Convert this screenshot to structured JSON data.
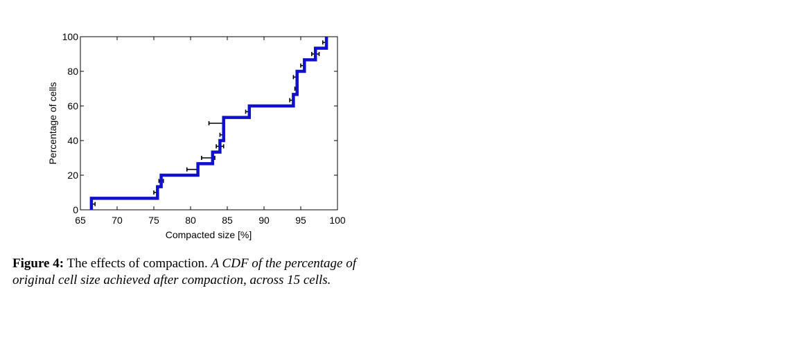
{
  "chart_data": {
    "type": "line",
    "title": "",
    "xlabel": "Compacted size [%]",
    "ylabel": "Percentage of cells",
    "xlim": [
      65,
      100
    ],
    "ylim": [
      0,
      100
    ],
    "xticks": [
      65,
      70,
      75,
      80,
      85,
      90,
      95,
      100
    ],
    "yticks": [
      0,
      20,
      40,
      60,
      80,
      100
    ],
    "grid": false,
    "legend": "none",
    "line_color": "#1010cc",
    "errorbar_color": "#000000",
    "series": [
      {
        "step_points": [
          {
            "x": 66.5,
            "y": 0
          },
          {
            "x": 66.5,
            "y": 6.67
          },
          {
            "x": 75.5,
            "y": 6.67
          },
          {
            "x": 75.5,
            "y": 13.33
          },
          {
            "x": 76.0,
            "y": 13.33
          },
          {
            "x": 76.0,
            "y": 20.0
          },
          {
            "x": 81.0,
            "y": 20.0
          },
          {
            "x": 81.0,
            "y": 26.67
          },
          {
            "x": 83.0,
            "y": 26.67
          },
          {
            "x": 83.0,
            "y": 33.33
          },
          {
            "x": 84.0,
            "y": 33.33
          },
          {
            "x": 84.0,
            "y": 40.0
          },
          {
            "x": 84.5,
            "y": 40.0
          },
          {
            "x": 84.5,
            "y": 53.33
          },
          {
            "x": 88.0,
            "y": 53.33
          },
          {
            "x": 88.0,
            "y": 60.0
          },
          {
            "x": 94.0,
            "y": 60.0
          },
          {
            "x": 94.0,
            "y": 66.67
          },
          {
            "x": 94.5,
            "y": 66.67
          },
          {
            "x": 94.5,
            "y": 80.0
          },
          {
            "x": 95.5,
            "y": 80.0
          },
          {
            "x": 95.5,
            "y": 86.67
          },
          {
            "x": 97.0,
            "y": 86.67
          },
          {
            "x": 97.0,
            "y": 93.33
          },
          {
            "x": 98.5,
            "y": 93.33
          },
          {
            "x": 98.5,
            "y": 100.0
          }
        ]
      }
    ],
    "error_bars": [
      {
        "y": 3.33,
        "x_low": 66.5,
        "x_high": 67.0
      },
      {
        "y": 10.0,
        "x_low": 75.0,
        "x_high": 75.5
      },
      {
        "y": 16.67,
        "x_low": 75.7,
        "x_high": 76.3
      },
      {
        "y": 23.33,
        "x_low": 79.5,
        "x_high": 81.0
      },
      {
        "y": 30.0,
        "x_low": 81.5,
        "x_high": 83.3
      },
      {
        "y": 36.67,
        "x_low": 83.5,
        "x_high": 84.5
      },
      {
        "y": 43.33,
        "x_low": 84.0,
        "x_high": 84.5
      },
      {
        "y": 50.0,
        "x_low": 82.5,
        "x_high": 84.5
      },
      {
        "y": 56.67,
        "x_low": 87.5,
        "x_high": 88.0
      },
      {
        "y": 63.33,
        "x_low": 93.5,
        "x_high": 94.0
      },
      {
        "y": 70.0,
        "x_low": 94.2,
        "x_high": 94.5
      },
      {
        "y": 76.67,
        "x_low": 94.0,
        "x_high": 94.5
      },
      {
        "y": 83.33,
        "x_low": 95.0,
        "x_high": 95.5
      },
      {
        "y": 90.0,
        "x_low": 96.5,
        "x_high": 97.5
      },
      {
        "y": 96.67,
        "x_low": 98.0,
        "x_high": 98.5
      }
    ]
  },
  "caption": {
    "label": "Figure 4:",
    "lead": "The effects of compaction.",
    "body": "A CDF of the percentage of original cell size achieved after compaction, across 15 cells."
  }
}
